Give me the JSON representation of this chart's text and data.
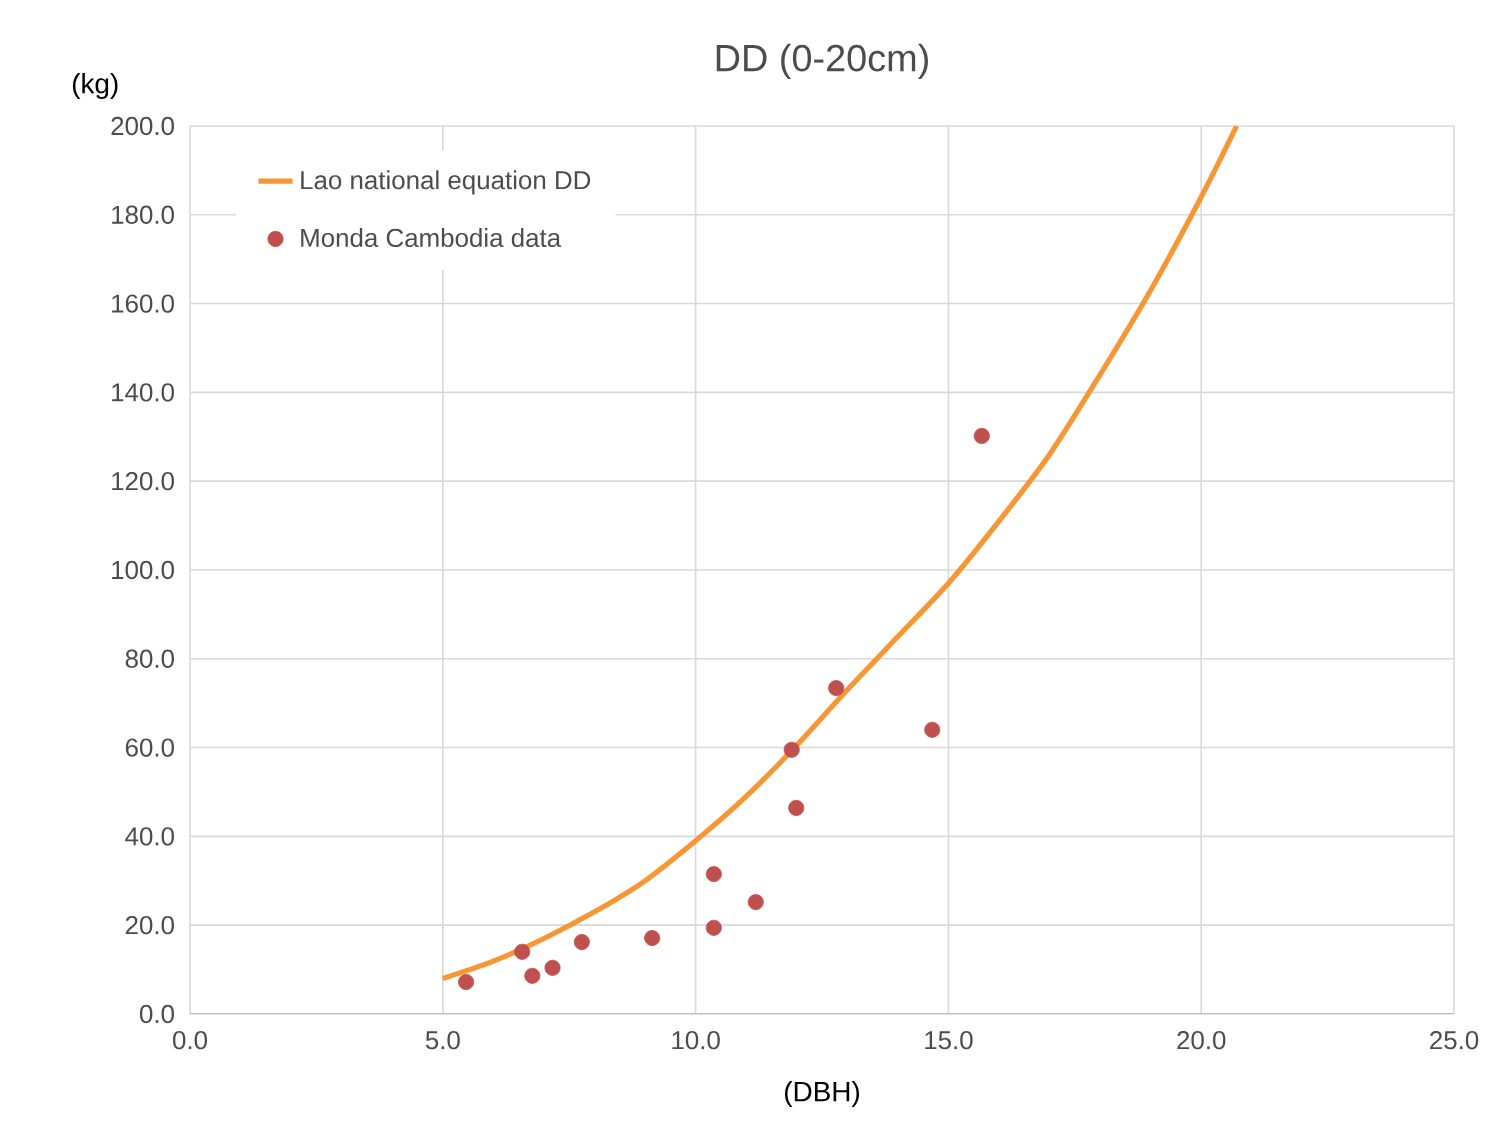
{
  "chart_data": {
    "type": "scatter",
    "title": "DD (0-20cm)",
    "xlabel": "(DBH)",
    "ylabel": "(kg)",
    "xlim": [
      0,
      25
    ],
    "ylim": [
      0,
      200
    ],
    "xticks": [
      {
        "value": 0,
        "label": "0.0"
      },
      {
        "value": 5,
        "label": "5.0"
      },
      {
        "value": 10,
        "label": "10.0"
      },
      {
        "value": 15,
        "label": "15.0"
      },
      {
        "value": 20,
        "label": "20.0"
      },
      {
        "value": 25,
        "label": "25.0"
      }
    ],
    "yticks": [
      {
        "value": 0,
        "label": "0.0"
      },
      {
        "value": 20,
        "label": "20.0"
      },
      {
        "value": 40,
        "label": "40.0"
      },
      {
        "value": 60,
        "label": "60.0"
      },
      {
        "value": 80,
        "label": "80.0"
      },
      {
        "value": 100,
        "label": "100.0"
      },
      {
        "value": 120,
        "label": "120.0"
      },
      {
        "value": 140,
        "label": "140.0"
      },
      {
        "value": 160,
        "label": "160.0"
      },
      {
        "value": 180,
        "label": "180.0"
      },
      {
        "value": 200,
        "label": "200.0"
      }
    ],
    "grid": true,
    "legend": "top left",
    "series": [
      {
        "name": "Lao national equation DD",
        "type": "line",
        "marker": "none",
        "color": "#f79633",
        "x": [
          5,
          6,
          7,
          8,
          9,
          10,
          11,
          12,
          13,
          14,
          15,
          16,
          17,
          18,
          19,
          20,
          20.7
        ],
        "values": [
          8,
          11.9,
          17,
          23,
          30,
          39,
          49,
          60.5,
          73,
          85,
          97,
          111,
          126,
          144,
          163,
          184,
          200
        ]
      },
      {
        "name": "Monda Cambodia data",
        "marker": "circle",
        "color": "#c0504d",
        "x": [
          5.46,
          6.57,
          6.77,
          7.17,
          7.75,
          9.14,
          10.36,
          10.36,
          11.19,
          11.9,
          11.99,
          12.78,
          14.68,
          15.66
        ],
        "values": [
          7.2,
          14.0,
          8.6,
          10.4,
          16.2,
          17.1,
          31.5,
          19.4,
          25.2,
          59.5,
          46.4,
          73.4,
          64.0,
          130.2
        ]
      }
    ]
  }
}
